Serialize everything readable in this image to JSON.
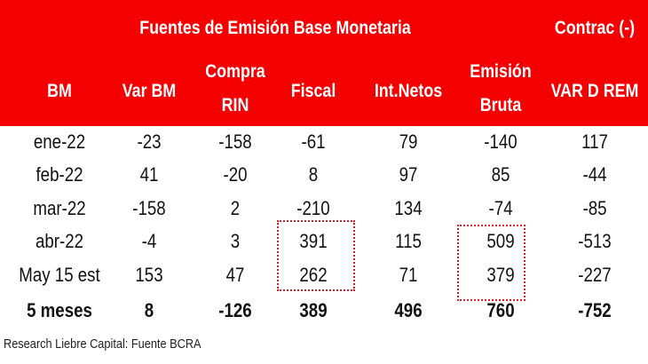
{
  "title": "Fuentes de Emisión Base Monetaria",
  "title_right": "Contrac (-)",
  "columns": [
    {
      "line1": "BM",
      "line2": ""
    },
    {
      "line1": "Var BM",
      "line2": ""
    },
    {
      "line1": "Compra",
      "line2": "RIN"
    },
    {
      "line1": "Fiscal",
      "line2": ""
    },
    {
      "line1": "Int.Netos",
      "line2": ""
    },
    {
      "line1": "Emisión",
      "line2": "Bruta"
    },
    {
      "line1": "VAR D REM",
      "line2": ""
    }
  ],
  "rows": [
    [
      "ene-22",
      "-23",
      "-158",
      "-61",
      "79",
      "-140",
      "117"
    ],
    [
      "feb-22",
      "41",
      "-20",
      "8",
      "97",
      "85",
      "-44"
    ],
    [
      "mar-22",
      "-158",
      "2",
      "-210",
      "134",
      "-74",
      "-85"
    ],
    [
      "abr-22",
      "-4",
      "3",
      "391",
      "115",
      "509",
      "-513"
    ],
    [
      "May 15 est",
      "153",
      "47",
      "262",
      "71",
      "379",
      "-227"
    ],
    [
      "5 meses",
      "8",
      "-126",
      "389",
      "496",
      "760",
      "-752"
    ]
  ],
  "footer": "Research Liebre Capital: Fuente BCRA",
  "colors": {
    "header": "#f40000",
    "highlight_box": "#d4202a"
  }
}
